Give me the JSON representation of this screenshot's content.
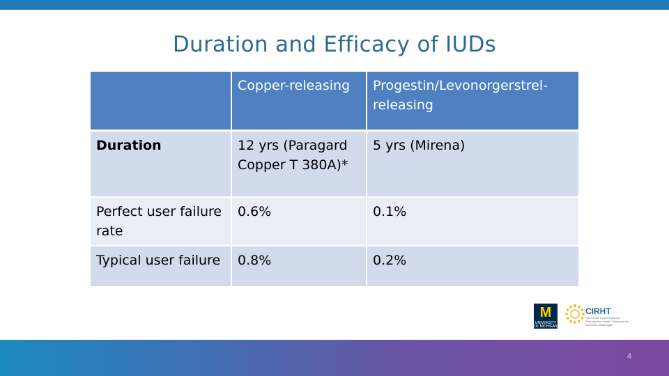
{
  "slide": {
    "title": "Duration and Efficacy of IUDs",
    "page_number": "4"
  },
  "table": {
    "headers": [
      "",
      "Copper-releasing",
      "Progestin/Levonorgerstrel-releasing"
    ],
    "rows": [
      {
        "label": "Duration",
        "copper": "12 yrs (Paragard Copper T 380A)*",
        "progestin": "5 yrs (Mirena)"
      },
      {
        "label": "Perfect user failure rate",
        "copper": "0.6%",
        "progestin": "0.1%"
      },
      {
        "label": "Typical user failure",
        "copper": "0.8%",
        "progestin": "0.2%"
      }
    ]
  },
  "logos": {
    "umich_letter": "M",
    "umich_text": "UNIVERSITY OF MICHIGAN",
    "cirht_name": "CIRHT",
    "cirht_subtitle": "The Center for International Reproductive Health Training at the University of Michigan"
  },
  "colors": {
    "top_bar": "#1f7bb5",
    "title": "#2d6b95",
    "header_fill": "#4f80c1",
    "row_dark": "#d1dbec",
    "row_light": "#e8edf6"
  }
}
